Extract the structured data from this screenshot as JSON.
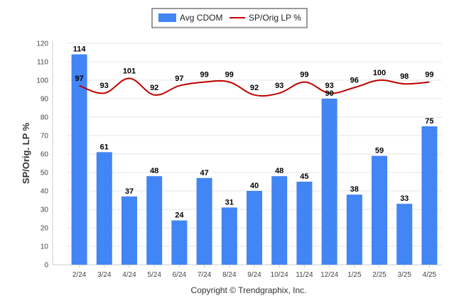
{
  "chart_data": {
    "type": "bar",
    "categories": [
      "2/24",
      "3/24",
      "4/24",
      "5/24",
      "6/24",
      "7/24",
      "8/24",
      "9/24",
      "10/24",
      "11/24",
      "12/24",
      "1/25",
      "2/25",
      "3/25",
      "4/25"
    ],
    "series": [
      {
        "name": "Avg CDOM",
        "type": "bar",
        "color": "#4285f4",
        "values": [
          114,
          61,
          37,
          48,
          24,
          47,
          31,
          40,
          48,
          45,
          90,
          38,
          59,
          33,
          75
        ]
      },
      {
        "name": "SP/Orig LP %",
        "type": "line",
        "color": "#c00000",
        "values": [
          97,
          93,
          101,
          92,
          97,
          99,
          99,
          92,
          93,
          99,
          93,
          96,
          100,
          98,
          99
        ]
      }
    ],
    "ylabel": "SP/Orig. LP %",
    "ylim": [
      0,
      120
    ],
    "yticks": [
      0,
      10,
      20,
      30,
      40,
      50,
      60,
      70,
      80,
      90,
      100,
      110,
      120
    ],
    "grid": true,
    "legend_position": "top-center",
    "footer": "Copyright © Trendgraphix, Inc."
  }
}
